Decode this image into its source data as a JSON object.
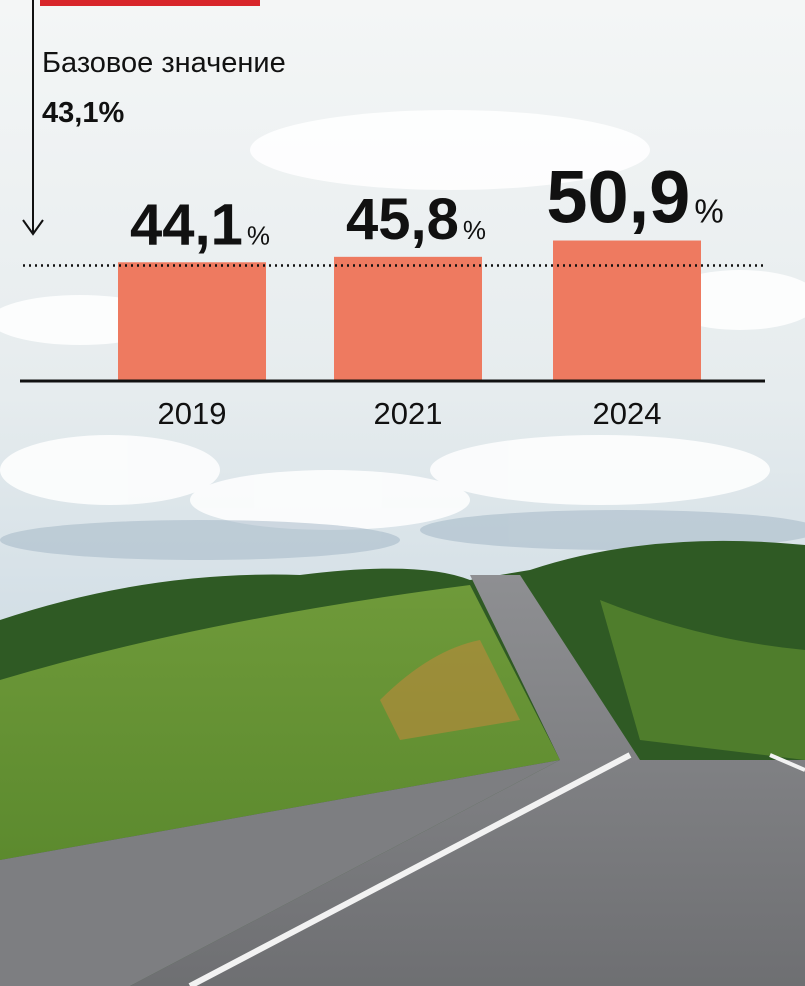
{
  "chart_data": {
    "type": "bar",
    "baseline": {
      "label": "Базовое значение",
      "value": 43.1,
      "value_label": "43,1%"
    },
    "categories": [
      "2019",
      "2021",
      "2024"
    ],
    "values": [
      44.1,
      45.8,
      50.9
    ],
    "value_labels": [
      "44,1%",
      "45,8%",
      "50,9%"
    ],
    "color": "#ee7a60",
    "ylim": [
      7,
      51
    ]
  }
}
